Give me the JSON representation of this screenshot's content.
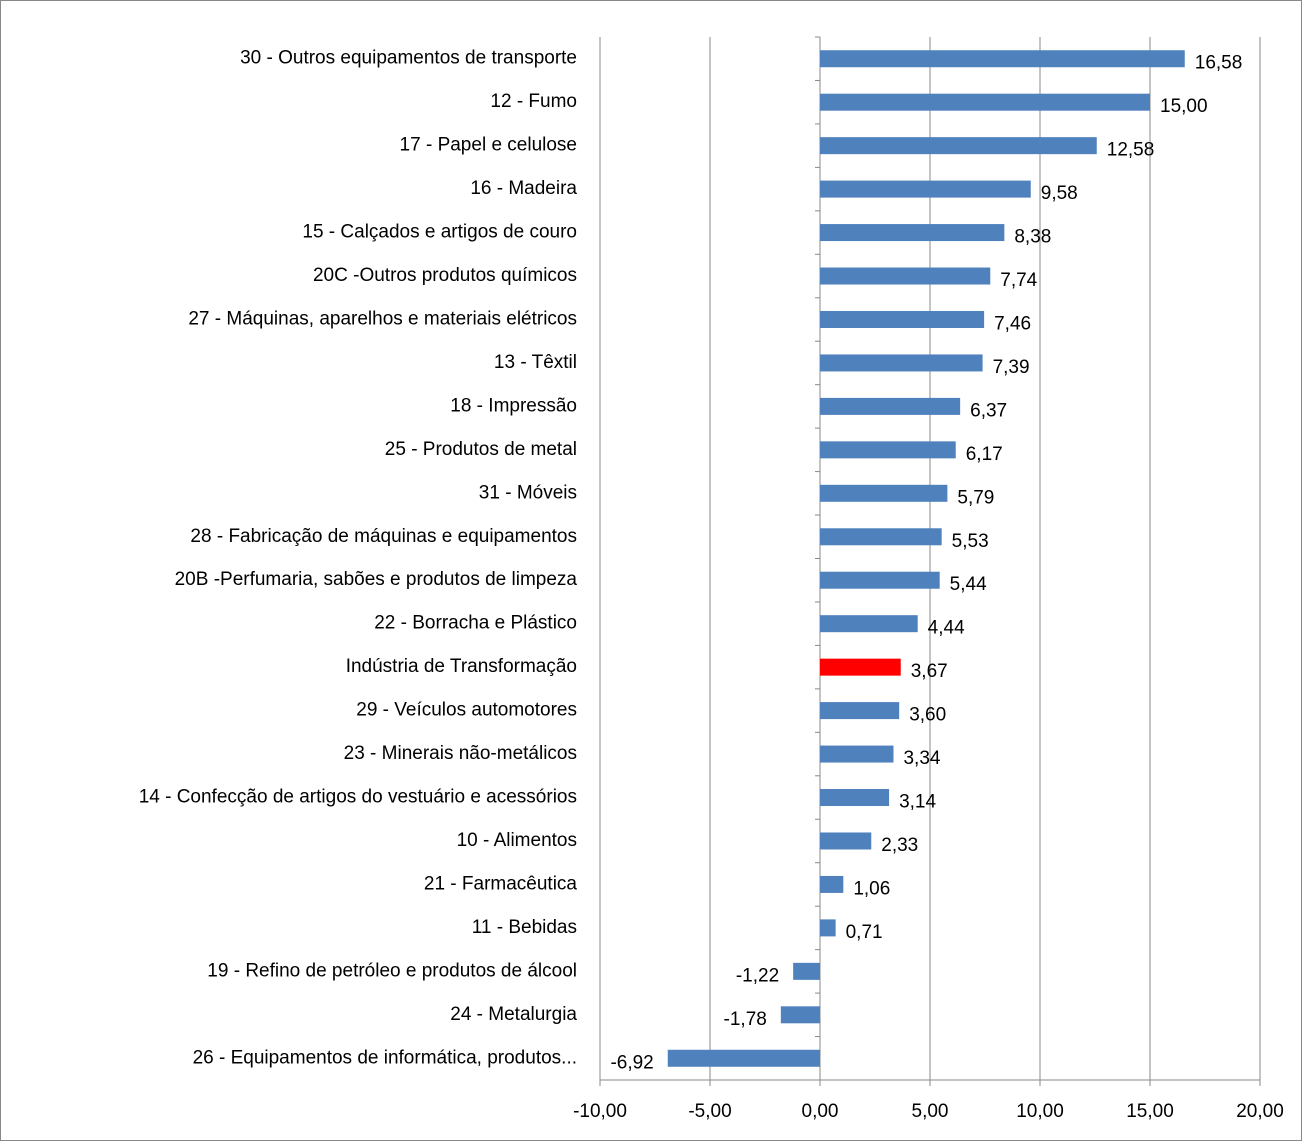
{
  "chart_data": {
    "type": "bar",
    "orientation": "horizontal",
    "categories": [
      "30 - Outros equipamentos de transporte",
      "12 - Fumo",
      "17 - Papel e celulose",
      "16 - Madeira",
      "15 - Calçados e artigos de couro",
      "20C -Outros produtos químicos",
      "27 - Máquinas, aparelhos e materiais elétricos",
      "13 - Têxtil",
      "18 - Impressão",
      "25 - Produtos de metal",
      "31 - Móveis",
      "28 - Fabricação de máquinas e equipamentos",
      "20B -Perfumaria, sabões e produtos de limpeza",
      "22 - Borracha e Plástico",
      "Indústria de Transformação",
      "29 - Veículos automotores",
      "23 - Minerais não-metálicos",
      "14 - Confecção de artigos do vestuário e acessórios",
      "10 - Alimentos",
      "21 - Farmacêutica",
      "11 - Bebidas",
      "19 - Refino de petróleo e produtos de álcool",
      "24 - Metalurgia",
      "26 - Equipamentos de informática, produtos..."
    ],
    "values": [
      16.58,
      15.0,
      12.58,
      9.58,
      8.38,
      7.74,
      7.46,
      7.39,
      6.37,
      6.17,
      5.79,
      5.53,
      5.44,
      4.44,
      3.67,
      3.6,
      3.34,
      3.14,
      2.33,
      1.06,
      0.71,
      -1.22,
      -1.78,
      -6.92
    ],
    "value_labels": [
      "16,58",
      "15,00",
      "12,58",
      "9,58",
      "8,38",
      "7,74",
      "7,46",
      "7,39",
      "6,37",
      "6,17",
      "5,79",
      "5,53",
      "5,44",
      "4,44",
      "3,67",
      "3,60",
      "3,34",
      "3,14",
      "2,33",
      "1,06",
      "0,71",
      "-1,22",
      "-1,78",
      "-6,92"
    ],
    "colors": [
      "#4f81bd",
      "#4f81bd",
      "#4f81bd",
      "#4f81bd",
      "#4f81bd",
      "#4f81bd",
      "#4f81bd",
      "#4f81bd",
      "#4f81bd",
      "#4f81bd",
      "#4f81bd",
      "#4f81bd",
      "#4f81bd",
      "#4f81bd",
      "#ff0000",
      "#4f81bd",
      "#4f81bd",
      "#4f81bd",
      "#4f81bd",
      "#4f81bd",
      "#4f81bd",
      "#4f81bd",
      "#4f81bd",
      "#4f81bd"
    ],
    "xlim": [
      -10,
      20
    ],
    "xticks": [
      {
        "value": -10,
        "label": "-10,00"
      },
      {
        "value": -5,
        "label": "-5,00"
      },
      {
        "value": 0,
        "label": "0,00"
      },
      {
        "value": 5,
        "label": "5,00"
      },
      {
        "value": 10,
        "label": "10,00"
      },
      {
        "value": 15,
        "label": "15,00"
      },
      {
        "value": 20,
        "label": "20,00"
      }
    ],
    "grid": true
  }
}
